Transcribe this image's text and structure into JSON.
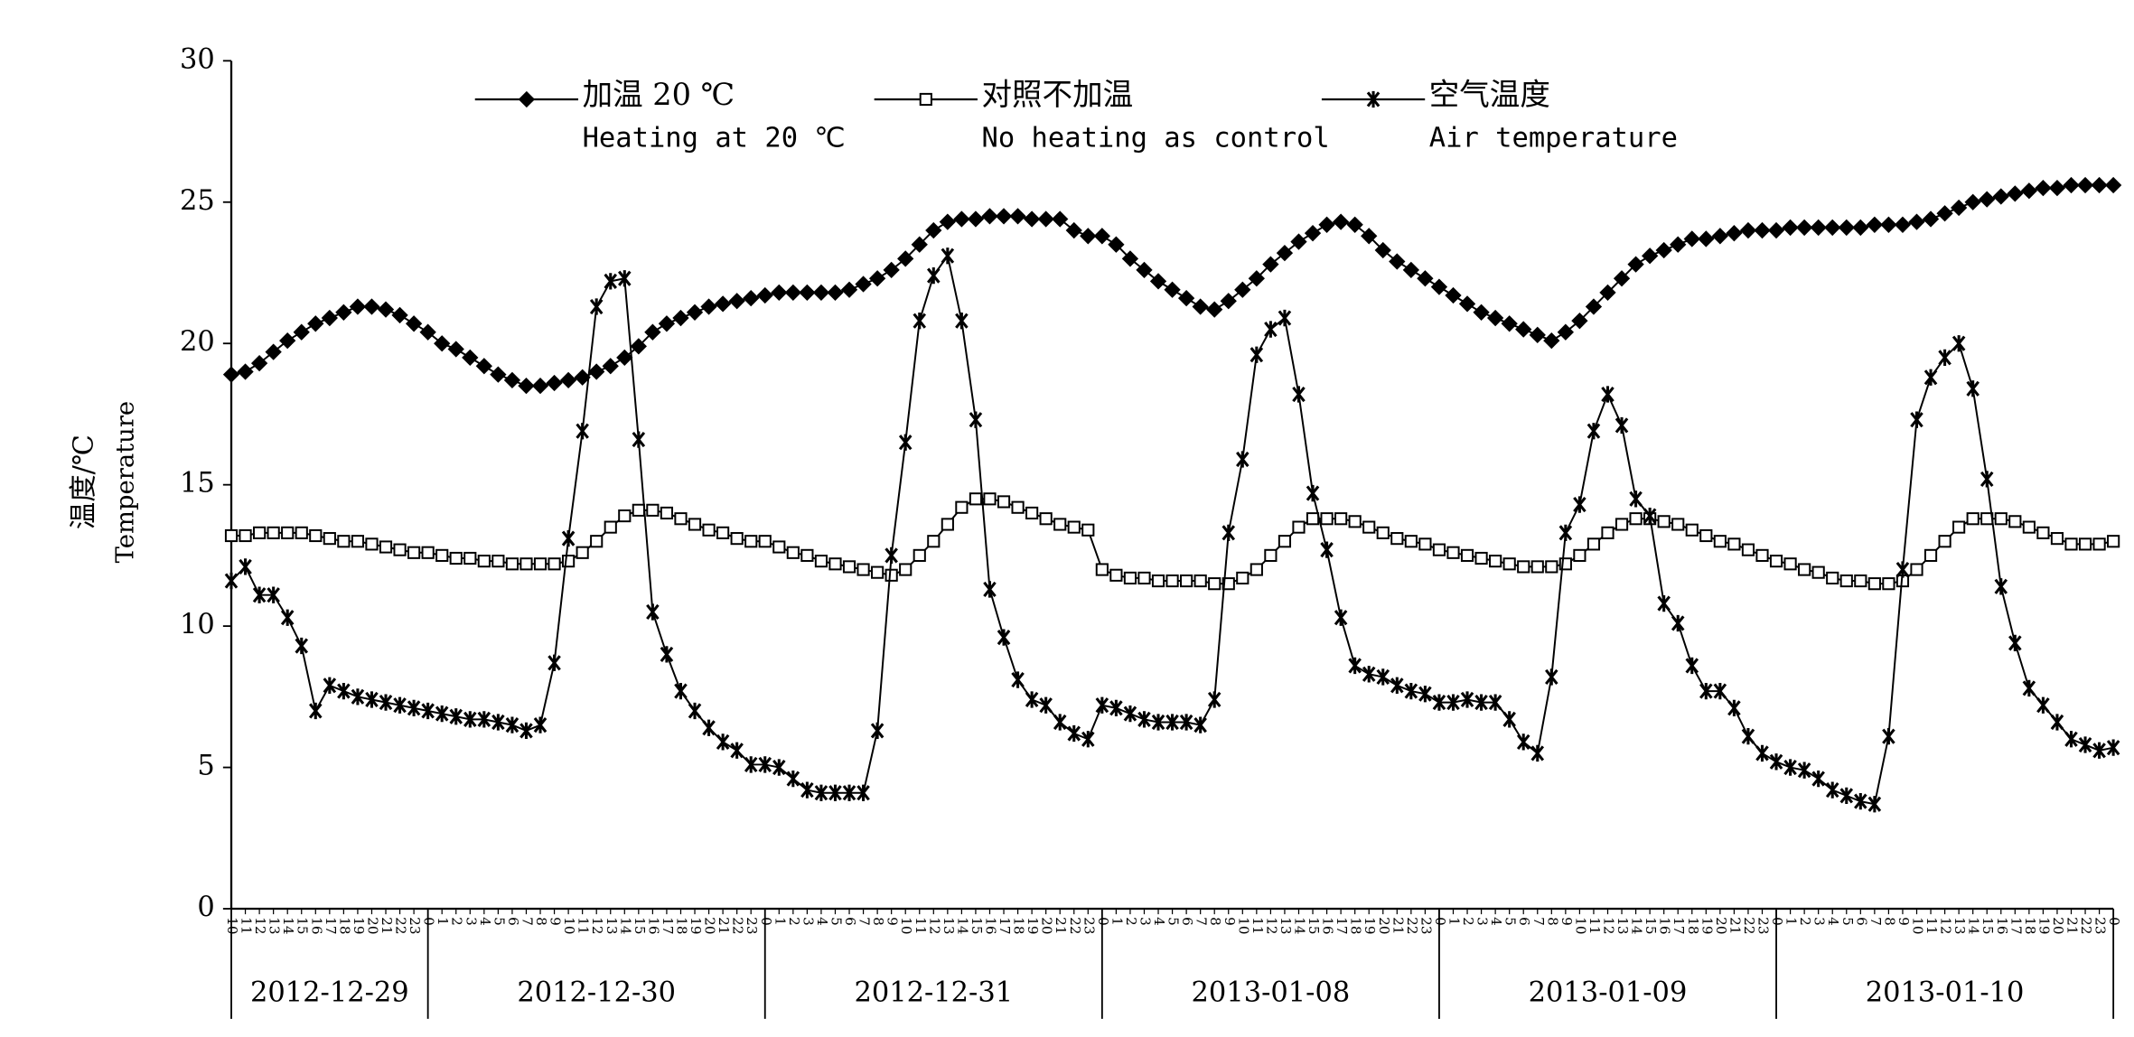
{
  "chart_data": {
    "type": "line",
    "ylabel": "温度/℃",
    "ylabel_en": "Temperature",
    "categories": [
      "10",
      "11",
      "12",
      "13",
      "14",
      "15",
      "16",
      "17",
      "18",
      "19",
      "20",
      "21",
      "22",
      "23",
      "0",
      "1",
      "2",
      "3",
      "4",
      "5",
      "6",
      "7",
      "8",
      "9",
      "10",
      "11",
      "12",
      "13",
      "14",
      "15",
      "16",
      "17",
      "18",
      "19",
      "20",
      "21",
      "22",
      "23",
      "0",
      "1",
      "2",
      "3",
      "4",
      "5",
      "6",
      "7",
      "8",
      "9",
      "10",
      "11",
      "12",
      "13",
      "14",
      "15",
      "16",
      "17",
      "18",
      "19",
      "20",
      "21",
      "22",
      "23",
      "0",
      "1",
      "2",
      "3",
      "4",
      "5",
      "6",
      "7",
      "8",
      "9",
      "10",
      "11",
      "12",
      "13",
      "14",
      "15",
      "16",
      "17",
      "18",
      "19",
      "20",
      "21",
      "22",
      "23",
      "0",
      "1",
      "2",
      "3",
      "4",
      "5",
      "6",
      "7",
      "8",
      "9",
      "10",
      "11",
      "12",
      "13",
      "14",
      "15",
      "16",
      "17",
      "18",
      "19",
      "20",
      "21",
      "22",
      "23",
      "0",
      "1",
      "2",
      "3",
      "4",
      "5",
      "6",
      "7",
      "8",
      "9",
      "10",
      "11",
      "12",
      "13",
      "14",
      "15",
      "16",
      "17",
      "18",
      "19",
      "20",
      "21",
      "22",
      "23",
      "0"
    ],
    "days": [
      "2012-12-29",
      "2012-12-30",
      "2012-12-31",
      "2013-01-08",
      "2013-01-09",
      "2013-01-10"
    ],
    "ylim": [
      0,
      30
    ],
    "yticks": [
      0,
      5,
      10,
      15,
      20,
      25,
      30
    ],
    "grid": false,
    "series": [
      {
        "name": "加温 20 ℃",
        "name_en": "Heating at 20 ℃",
        "color": "#000000",
        "marker": "diamond",
        "values": [
          18.9,
          19.0,
          19.3,
          19.7,
          20.1,
          20.4,
          20.7,
          20.9,
          21.1,
          21.3,
          21.3,
          21.2,
          21.0,
          20.7,
          20.4,
          20.0,
          19.8,
          19.5,
          19.2,
          18.9,
          18.7,
          18.5,
          18.5,
          18.6,
          18.7,
          18.8,
          19.0,
          19.2,
          19.5,
          19.9,
          20.4,
          20.7,
          20.9,
          21.1,
          21.3,
          21.4,
          21.5,
          21.6,
          21.7,
          21.8,
          21.8,
          21.8,
          21.8,
          21.8,
          21.9,
          22.1,
          22.3,
          22.6,
          23.0,
          23.5,
          24.0,
          24.3,
          24.4,
          24.4,
          24.5,
          24.5,
          24.5,
          24.4,
          24.4,
          24.4,
          24.0,
          23.8,
          23.8,
          23.5,
          23.0,
          22.6,
          22.2,
          21.9,
          21.6,
          21.3,
          21.2,
          21.5,
          21.9,
          22.3,
          22.8,
          23.2,
          23.6,
          23.9,
          24.2,
          24.3,
          24.2,
          23.8,
          23.3,
          22.9,
          22.6,
          22.3,
          22.0,
          21.7,
          21.4,
          21.1,
          20.9,
          20.7,
          20.5,
          20.3,
          20.1,
          20.4,
          20.8,
          21.3,
          21.8,
          22.3,
          22.8,
          23.1,
          23.3,
          23.5,
          23.7,
          23.7,
          23.8,
          23.9,
          24.0,
          24.0,
          24.0,
          24.1,
          24.1,
          24.1,
          24.1,
          24.1,
          24.1,
          24.2,
          24.2,
          24.2,
          24.3,
          24.4,
          24.6,
          24.8,
          25.0,
          25.1,
          25.2,
          25.3,
          25.4,
          25.5,
          25.5,
          25.6,
          25.6,
          25.6,
          25.6
        ]
      },
      {
        "name": "对照不加温",
        "name_en": "No heating as control",
        "color": "#000000",
        "marker": "square",
        "values": [
          13.2,
          13.2,
          13.3,
          13.3,
          13.3,
          13.3,
          13.2,
          13.1,
          13.0,
          13.0,
          12.9,
          12.8,
          12.7,
          12.6,
          12.6,
          12.5,
          12.4,
          12.4,
          12.3,
          12.3,
          12.2,
          12.2,
          12.2,
          12.2,
          12.3,
          12.6,
          13.0,
          13.5,
          13.9,
          14.1,
          14.1,
          14.0,
          13.8,
          13.6,
          13.4,
          13.3,
          13.1,
          13.0,
          13.0,
          12.8,
          12.6,
          12.5,
          12.3,
          12.2,
          12.1,
          12.0,
          11.9,
          11.8,
          12.0,
          12.5,
          13.0,
          13.6,
          14.2,
          14.5,
          14.5,
          14.4,
          14.2,
          14.0,
          13.8,
          13.6,
          13.5,
          13.4,
          12.0,
          11.8,
          11.7,
          11.7,
          11.6,
          11.6,
          11.6,
          11.6,
          11.5,
          11.5,
          11.7,
          12.0,
          12.5,
          13.0,
          13.5,
          13.8,
          13.8,
          13.8,
          13.7,
          13.5,
          13.3,
          13.1,
          13.0,
          12.9,
          12.7,
          12.6,
          12.5,
          12.4,
          12.3,
          12.2,
          12.1,
          12.1,
          12.1,
          12.2,
          12.5,
          12.9,
          13.3,
          13.6,
          13.8,
          13.8,
          13.7,
          13.6,
          13.4,
          13.2,
          13.0,
          12.9,
          12.7,
          12.5,
          12.3,
          12.2,
          12.0,
          11.9,
          11.7,
          11.6,
          11.6,
          11.5,
          11.5,
          11.6,
          12.0,
          12.5,
          13.0,
          13.5,
          13.8,
          13.8,
          13.8,
          13.7,
          13.5,
          13.3,
          13.1,
          12.9,
          12.9,
          12.9,
          13.0
        ]
      },
      {
        "name": "空气温度",
        "name_en": "Air temperature",
        "color": "#000000",
        "marker": "x",
        "values": [
          11.6,
          12.1,
          11.1,
          11.1,
          10.3,
          9.3,
          7.0,
          7.9,
          7.7,
          7.5,
          7.4,
          7.3,
          7.2,
          7.1,
          7.0,
          6.9,
          6.8,
          6.7,
          6.7,
          6.6,
          6.5,
          6.3,
          6.5,
          8.7,
          13.1,
          16.9,
          21.3,
          22.2,
          22.3,
          16.6,
          10.5,
          9.0,
          7.7,
          7.0,
          6.4,
          5.9,
          5.6,
          5.1,
          5.1,
          5.0,
          4.6,
          4.2,
          4.1,
          4.1,
          4.1,
          4.1,
          6.3,
          12.5,
          16.5,
          20.8,
          22.4,
          23.1,
          20.8,
          17.3,
          11.3,
          9.6,
          8.1,
          7.4,
          7.2,
          6.6,
          6.2,
          6.0,
          7.2,
          7.1,
          6.9,
          6.7,
          6.6,
          6.6,
          6.6,
          6.5,
          7.4,
          13.3,
          15.9,
          19.6,
          20.5,
          20.9,
          18.2,
          14.7,
          12.7,
          10.3,
          8.6,
          8.3,
          8.2,
          7.9,
          7.7,
          7.6,
          7.3,
          7.3,
          7.4,
          7.3,
          7.3,
          6.7,
          5.9,
          5.5,
          8.2,
          13.3,
          14.3,
          16.9,
          18.2,
          17.1,
          14.5,
          13.9,
          10.8,
          10.1,
          8.6,
          7.7,
          7.7,
          7.1,
          6.1,
          5.5,
          5.2,
          5.0,
          4.9,
          4.6,
          4.2,
          4.0,
          3.8,
          3.7,
          6.1,
          12.0,
          17.3,
          18.8,
          19.5,
          20.0,
          18.4,
          15.2,
          11.4,
          9.4,
          7.8,
          7.2,
          6.6,
          6.0,
          5.8,
          5.6,
          5.7
        ]
      }
    ]
  }
}
